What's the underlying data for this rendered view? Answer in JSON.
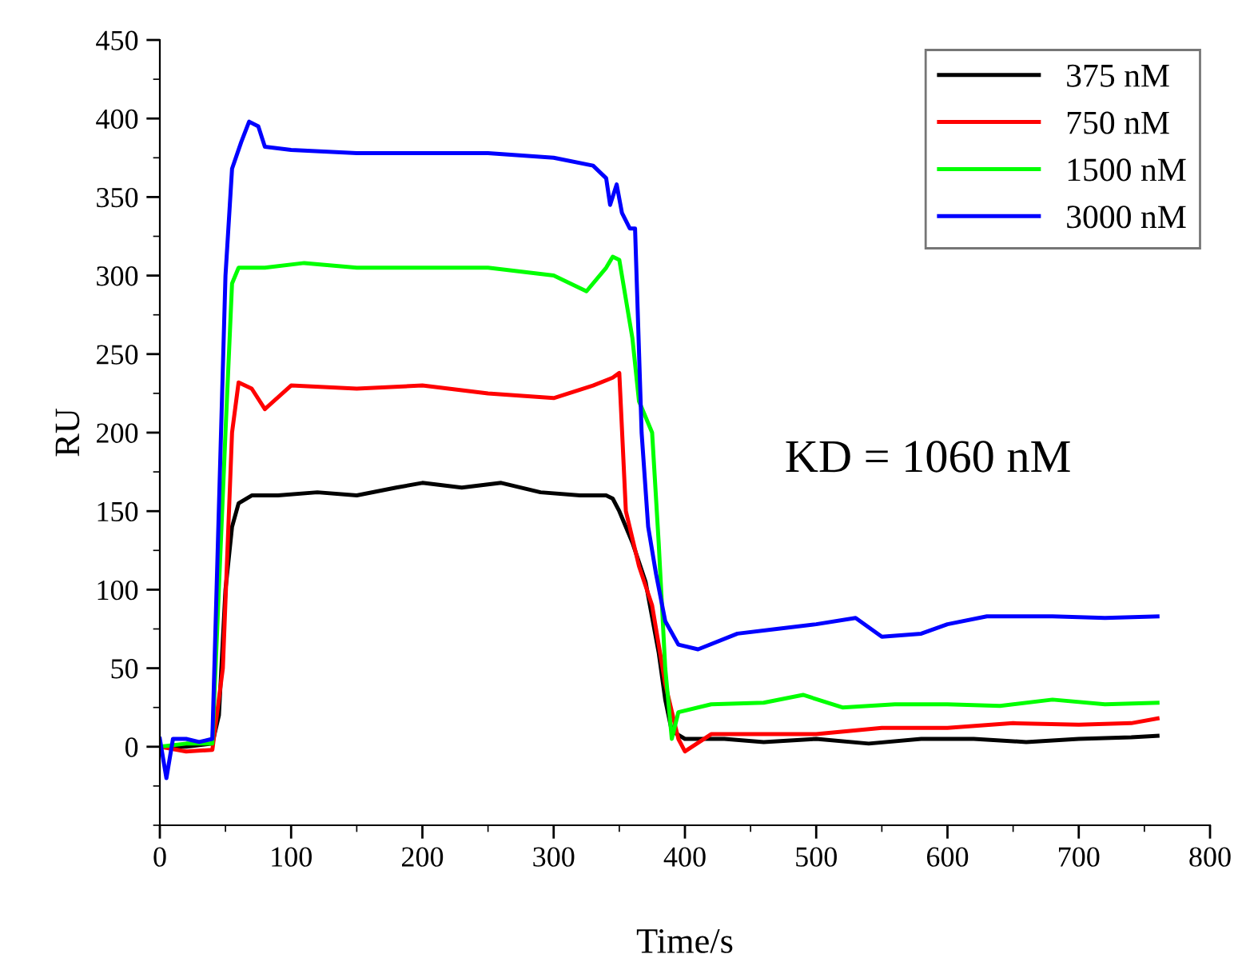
{
  "chart_data": {
    "type": "line",
    "xlabel": "Time/s",
    "ylabel": "RU",
    "xlim": [
      0,
      800
    ],
    "ylim": [
      -50,
      450
    ],
    "xticks": [
      0,
      100,
      200,
      300,
      400,
      500,
      600,
      700,
      800
    ],
    "yticks": [
      0,
      50,
      100,
      150,
      200,
      250,
      300,
      350,
      400,
      450
    ],
    "legend": "top right",
    "grid": false,
    "marker": "none",
    "line_style": "solid",
    "annotations": [
      "KD = 1060 nM"
    ],
    "series": [
      {
        "name": "375 nM",
        "color": "#000000",
        "x": [
          0,
          20,
          40,
          45,
          50,
          55,
          60,
          70,
          90,
          120,
          150,
          180,
          200,
          230,
          260,
          290,
          320,
          340,
          345,
          350,
          360,
          370,
          380,
          385,
          390,
          400,
          430,
          460,
          500,
          540,
          580,
          620,
          660,
          700,
          740,
          760
        ],
        "values": [
          0,
          0,
          2,
          20,
          100,
          140,
          155,
          160,
          160,
          162,
          160,
          165,
          168,
          165,
          168,
          162,
          160,
          160,
          158,
          150,
          130,
          105,
          60,
          30,
          10,
          5,
          5,
          3,
          5,
          2,
          5,
          5,
          3,
          5,
          6,
          7
        ]
      },
      {
        "name": "750 nM",
        "color": "#ff0000",
        "x": [
          0,
          20,
          40,
          48,
          55,
          60,
          70,
          80,
          100,
          150,
          200,
          250,
          300,
          330,
          345,
          350,
          355,
          365,
          375,
          385,
          395,
          400,
          420,
          450,
          500,
          550,
          600,
          650,
          700,
          740,
          760
        ],
        "values": [
          0,
          -3,
          -2,
          50,
          200,
          232,
          228,
          215,
          230,
          228,
          230,
          225,
          222,
          230,
          235,
          238,
          150,
          115,
          90,
          40,
          5,
          -3,
          8,
          8,
          8,
          12,
          12,
          15,
          14,
          15,
          18
        ]
      },
      {
        "name": "1500 nM",
        "color": "#00ff00",
        "x": [
          0,
          20,
          40,
          50,
          55,
          60,
          80,
          110,
          150,
          200,
          250,
          300,
          325,
          340,
          345,
          350,
          360,
          365,
          375,
          380,
          385,
          390,
          395,
          420,
          460,
          490,
          520,
          560,
          600,
          640,
          680,
          720,
          760
        ],
        "values": [
          0,
          2,
          2,
          200,
          295,
          305,
          305,
          308,
          305,
          305,
          305,
          300,
          290,
          305,
          312,
          310,
          260,
          220,
          200,
          130,
          50,
          5,
          22,
          27,
          28,
          33,
          25,
          27,
          27,
          26,
          30,
          27,
          28
        ]
      },
      {
        "name": "3000 nM",
        "color": "#0000ff",
        "x": [
          0,
          5,
          10,
          20,
          30,
          40,
          50,
          55,
          62,
          68,
          75,
          80,
          100,
          150,
          200,
          250,
          300,
          330,
          340,
          343,
          348,
          352,
          358,
          362,
          367,
          372,
          378,
          385,
          395,
          410,
          440,
          470,
          500,
          530,
          550,
          580,
          600,
          630,
          680,
          720,
          760
        ],
        "values": [
          5,
          -20,
          5,
          5,
          3,
          5,
          300,
          368,
          385,
          398,
          395,
          382,
          380,
          378,
          378,
          378,
          375,
          370,
          362,
          345,
          358,
          340,
          330,
          330,
          200,
          140,
          110,
          80,
          65,
          62,
          72,
          75,
          78,
          82,
          70,
          72,
          78,
          83,
          83,
          82,
          83
        ]
      }
    ]
  }
}
